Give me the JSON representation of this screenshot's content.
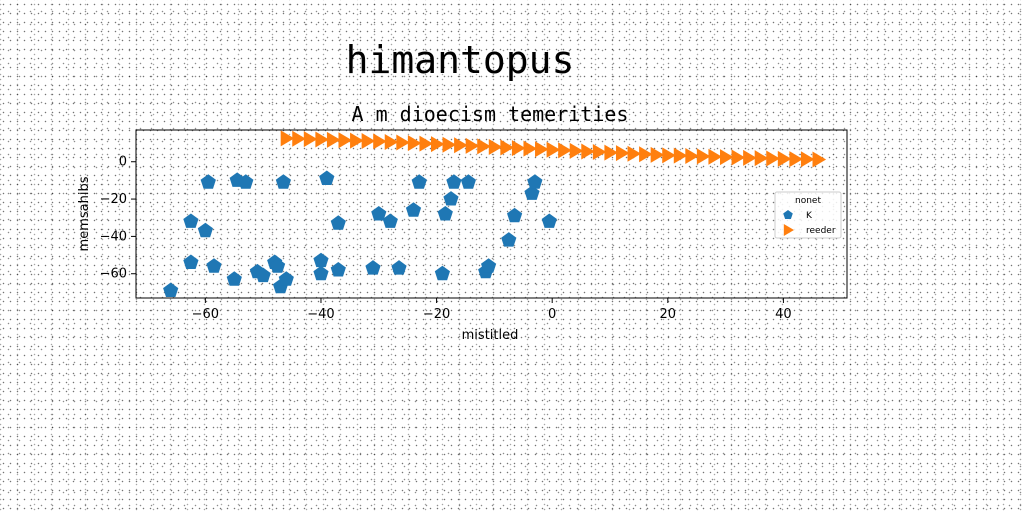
{
  "figure": {
    "suptitle": "himantopus"
  },
  "chart_data": {
    "type": "scatter",
    "title": "A m dioecism temerities",
    "xlabel": "mistitled",
    "ylabel": "memsahibs",
    "xlim": [
      -72,
      51
    ],
    "ylim": [
      -73,
      17
    ],
    "xticks": [
      -60,
      -40,
      -20,
      0,
      20,
      40
    ],
    "yticks": [
      0,
      -20,
      -40,
      -60
    ],
    "grid": false,
    "legend": {
      "title": "nonet",
      "placement": "center-right"
    },
    "series": [
      {
        "name": "K",
        "marker": "pentagon",
        "color": "#1f77b4",
        "x": [
          -66,
          -62.5,
          -62.5,
          -59.5,
          -60,
          -58.5,
          -55,
          -54.5,
          -53,
          -51,
          -50,
          -48,
          -47.5,
          -47,
          -46.5,
          -46,
          -40,
          -40,
          -39,
          -37,
          -37,
          -31,
          -30,
          -28,
          -26.5,
          -24,
          -23,
          -19,
          -18.5,
          -17.5,
          -17,
          -14.5,
          -11.5,
          -11,
          -7.5,
          -6.5,
          -3.5,
          -3,
          -0.5
        ],
        "y": [
          -69,
          -54,
          -32,
          -11,
          -37,
          -56,
          -63,
          -10,
          -11,
          -59,
          -61,
          -54,
          -56,
          -67,
          -11,
          -63,
          -60,
          -53,
          -9,
          -33,
          -58,
          -57,
          -28,
          -32,
          -57,
          -26,
          -11,
          -60,
          -28,
          -20,
          -11,
          -11,
          -59,
          -56,
          -42,
          -29,
          -17,
          -11,
          -32
        ]
      },
      {
        "name": "reeder",
        "marker": "triangle-right",
        "color": "#ff7f0e",
        "x": [
          -46,
          -44,
          -42,
          -40,
          -38,
          -36,
          -34,
          -32,
          -30,
          -28,
          -26,
          -24,
          -22,
          -20,
          -18,
          -16,
          -14,
          -12,
          -10,
          -8,
          -6,
          -4,
          -2,
          0,
          2,
          4,
          6,
          8,
          10,
          12,
          14,
          16,
          18,
          20,
          22,
          24,
          26,
          28,
          30,
          32,
          34,
          36,
          38,
          40,
          42,
          44,
          46
        ],
        "y": [
          12.5,
          12.3,
          12.1,
          11.9,
          11.7,
          11.5,
          11.3,
          11.1,
          10.9,
          10.6,
          10.3,
          10.0,
          9.7,
          9.4,
          9.1,
          8.8,
          8.5,
          8.2,
          7.9,
          7.6,
          7.3,
          7.0,
          6.7,
          6.4,
          6.1,
          5.8,
          5.5,
          5.2,
          4.9,
          4.6,
          4.3,
          4.0,
          3.7,
          3.4,
          3.3,
          3.1,
          2.9,
          2.7,
          2.5,
          2.3,
          2.1,
          1.9,
          1.7,
          1.5,
          1.4,
          1.3,
          1.2
        ]
      }
    ]
  }
}
